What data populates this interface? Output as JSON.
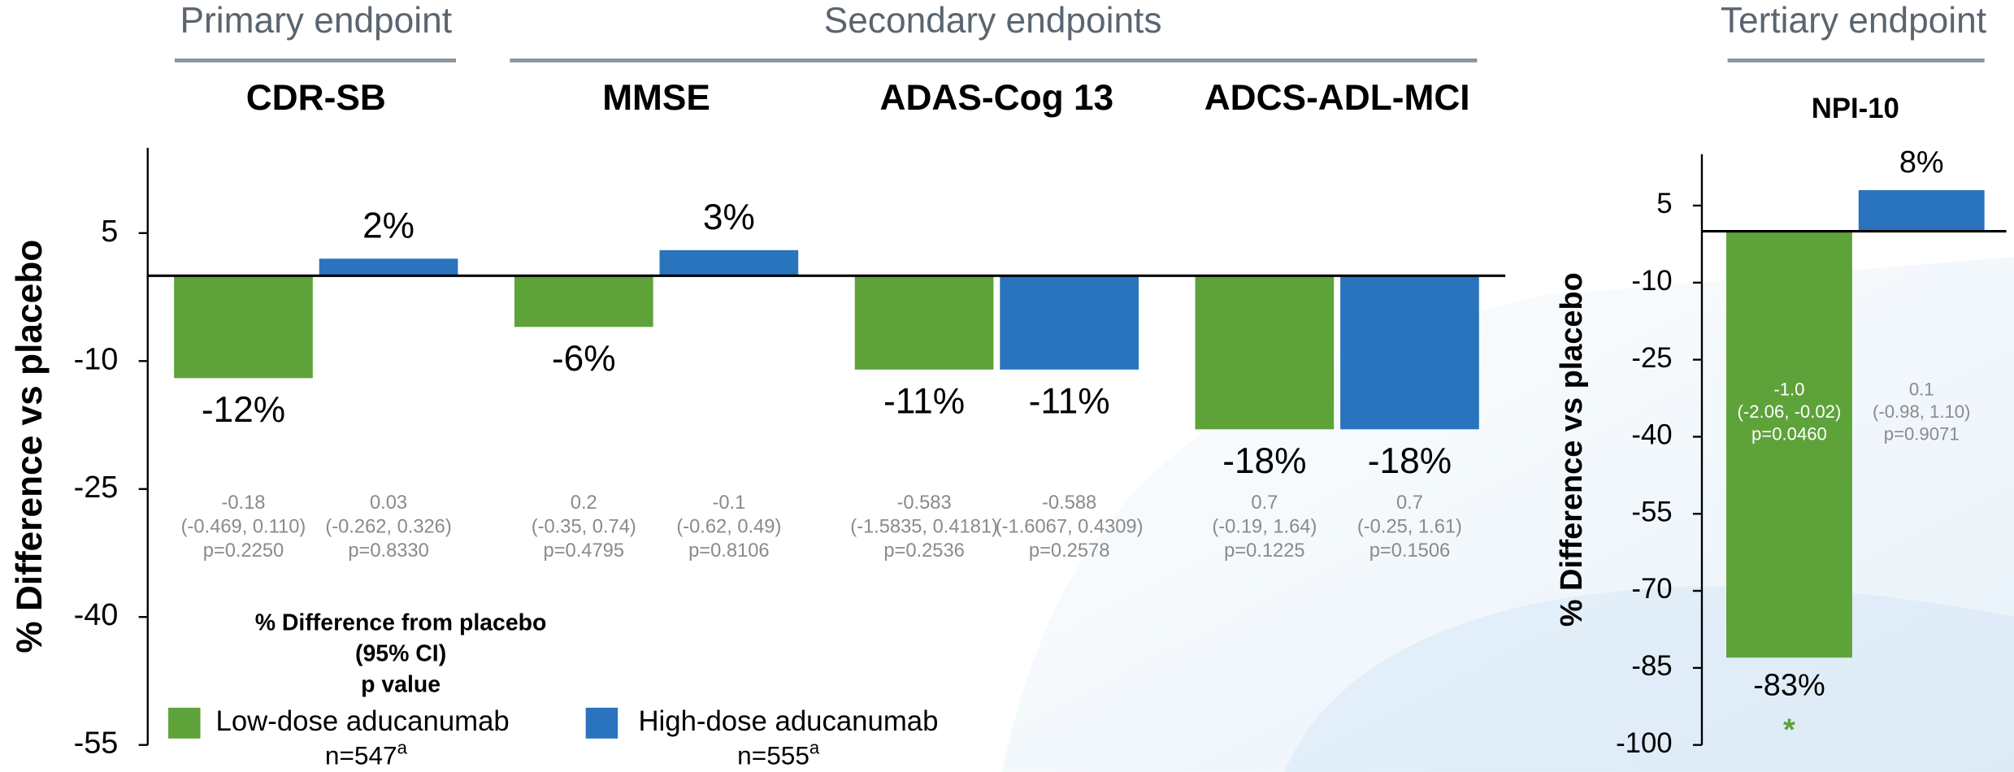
{
  "endpoint_groups": [
    "Primary endpoint",
    "Secondary endpoints",
    "Tertiary endpoint"
  ],
  "legend": {
    "title": [
      "% Difference from placebo",
      "(95% CI)",
      "p value"
    ]
  },
  "chart_data": [
    {
      "type": "bar",
      "ylabel": "% Difference vs placebo",
      "categories": [
        "CDR-SB",
        "MMSE",
        "ADAS-Cog 13",
        "ADCS-ADL-MCI"
      ],
      "ylim": [
        -55,
        15
      ],
      "yticks": [
        5,
        -10,
        -25,
        -40,
        -55
      ],
      "series": [
        {
          "name": "Low-dose aducanumab",
          "n": "n=547",
          "n_note": "a",
          "color": "#5ea33a",
          "values": [
            -12,
            -6,
            -11,
            -18
          ],
          "value_labels": [
            "-12%",
            "-6%",
            "-11%",
            "-18%"
          ],
          "stats": [
            [
              "-0.18",
              "(-0.469, 0.110)",
              "p=0.2250"
            ],
            [
              "0.2",
              "(-0.35, 0.74)",
              "p=0.4795"
            ],
            [
              "-0.583",
              "(-1.5835, 0.4181)",
              "p=0.2536"
            ],
            [
              "0.7",
              "(-0.19, 1.64)",
              "p=0.1225"
            ]
          ]
        },
        {
          "name": "High-dose aducanumab",
          "n": "n=555",
          "n_note": "a",
          "color": "#2a73bd",
          "values": [
            2,
            3,
            -11,
            -18
          ],
          "value_labels": [
            "2%",
            "3%",
            "-11%",
            "-18%"
          ],
          "stats": [
            [
              "0.03",
              "(-0.262, 0.326)",
              "p=0.8330"
            ],
            [
              "-0.1",
              "(-0.62, 0.49)",
              "p=0.8106"
            ],
            [
              "-0.588",
              "(-1.6067, 0.4309)",
              "p=0.2578"
            ],
            [
              "0.7",
              "(-0.25, 1.61)",
              "p=0.1506"
            ]
          ]
        }
      ]
    },
    {
      "type": "bar",
      "ylabel": "% Difference vs placebo",
      "categories": [
        "NPI-10"
      ],
      "ylim": [
        -100,
        15
      ],
      "yticks": [
        5,
        -10,
        -25,
        -40,
        -55,
        -70,
        -85,
        -100
      ],
      "series": [
        {
          "color": "#5ea33a",
          "values": [
            -83
          ],
          "value_labels": [
            "-83%"
          ],
          "stats": [
            [
              "-1.0",
              "(-2.06, -0.02)",
              "p=0.0460"
            ]
          ],
          "markers": [
            "*"
          ]
        },
        {
          "color": "#2a73bd",
          "values": [
            8
          ],
          "value_labels": [
            "8%"
          ],
          "stats": [
            [
              "0.1",
              "(-0.98, 1.10)",
              "p=0.9071"
            ]
          ]
        }
      ]
    }
  ]
}
